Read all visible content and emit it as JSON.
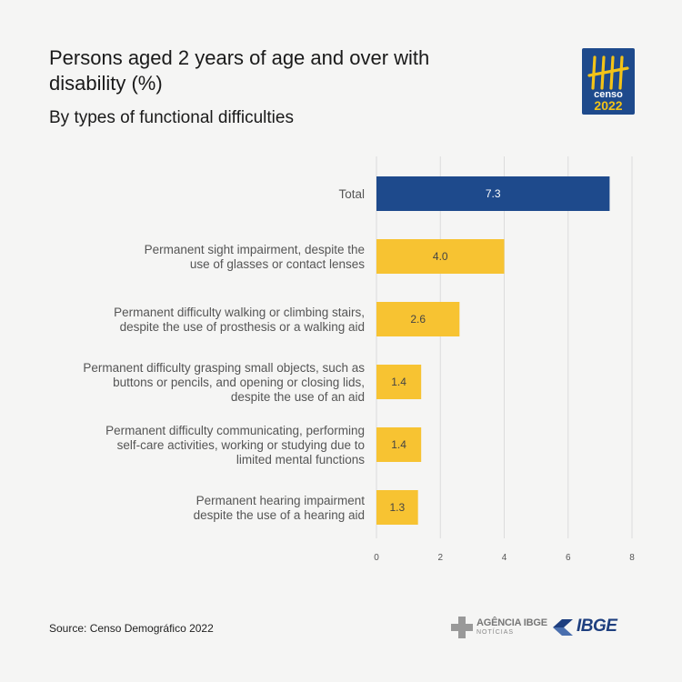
{
  "title": "Persons aged 2 years of age and over with disability (%)",
  "subtitle": "By types of functional difficulties",
  "source": "Source: Censo Demográfico 2022",
  "logo": {
    "word": "censo",
    "year": "2022",
    "color": "#1e4a8c",
    "accent": "#f3c317"
  },
  "footer": {
    "agencia": "AGÊNCIA IBGE",
    "agencia_sub": "NOTÍCIAS",
    "ibge": "IBGE"
  },
  "chart_data": {
    "type": "bar",
    "orientation": "horizontal",
    "categories": [
      [
        "Total"
      ],
      [
        "Permanent sight impairment, despite the",
        "use of glasses or contact lenses"
      ],
      [
        "Permanent difficulty walking or climbing stairs,",
        "despite the use of prosthesis or a walking aid"
      ],
      [
        "Permanent difficulty grasping small objects, such as",
        "buttons or pencils, and opening or closing lids,",
        "despite the use of an aid"
      ],
      [
        "Permanent difficulty communicating, performing",
        "self-care activities, working or studying due to",
        "limited mental functions"
      ],
      [
        "Permanent hearing impairment",
        "despite the use of a hearing aid"
      ]
    ],
    "values": [
      7.3,
      4.0,
      2.6,
      1.4,
      1.4,
      1.3
    ],
    "value_labels": [
      "7.3",
      "4.0",
      "2.6",
      "1.4",
      "1.4",
      "1.3"
    ],
    "colors": [
      "#1e4a8c",
      "#f7c332",
      "#f7c332",
      "#f7c332",
      "#f7c332",
      "#f7c332"
    ],
    "label_colors": [
      "#ffffff",
      "#444444",
      "#444444",
      "#444444",
      "#444444",
      "#444444"
    ],
    "xlim": [
      0,
      8
    ],
    "xticks": [
      0,
      2,
      4,
      6,
      8
    ],
    "grid": true
  }
}
